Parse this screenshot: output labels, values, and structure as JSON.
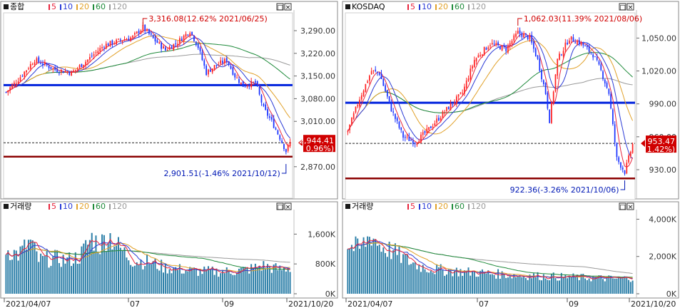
{
  "colors": {
    "up": "#ff2222",
    "down": "#1a33ff",
    "ma5": "#e8243c",
    "ma10": "#2b3bd6",
    "ma20": "#e1a12a",
    "ma60": "#1e8a3a",
    "ma120": "#9a9a9a",
    "support": "#0022dd",
    "floor": "#8b0000",
    "vol": "#2c7fa8"
  },
  "ma_legend": [
    "5",
    "10",
    "20",
    "60",
    "120"
  ],
  "chart_data": [
    {
      "id": "kospi",
      "type": "candlestick",
      "title": "종합",
      "ylim": [
        2830,
        3345
      ],
      "yticks": [
        "3,290.00",
        "3,220.00",
        "3,150.00",
        "3,080.00",
        "3,010.00",
        "2,870.00"
      ],
      "ytick_values": [
        3290,
        3220,
        3150,
        3080,
        3010,
        2870
      ],
      "high_annotation": "3,316.08(12.62% 2021/06/25)",
      "low_annotation": "2,901.51(-1.46% 2021/10/12)",
      "last_price": "2,944.41",
      "last_change": "( 0.96%)",
      "support_level": 3122,
      "floor_level": 2901,
      "last_level": 2944,
      "close_path": [
        [
          0,
          3100
        ],
        [
          6,
          3140
        ],
        [
          14,
          3200
        ],
        [
          24,
          3170
        ],
        [
          32,
          3160
        ],
        [
          40,
          3200
        ],
        [
          48,
          3245
        ],
        [
          56,
          3260
        ],
        [
          62,
          3270
        ],
        [
          67,
          3300
        ],
        [
          72,
          3265
        ],
        [
          78,
          3230
        ],
        [
          84,
          3255
        ],
        [
          90,
          3290
        ],
        [
          94,
          3240
        ],
        [
          98,
          3160
        ],
        [
          102,
          3180
        ],
        [
          108,
          3200
        ],
        [
          112,
          3150
        ],
        [
          116,
          3120
        ],
        [
          122,
          3130
        ],
        [
          126,
          3050
        ],
        [
          130,
          3010
        ],
        [
          134,
          2960
        ],
        [
          137,
          2918
        ],
        [
          139,
          2944
        ]
      ],
      "volume": {
        "title": "거래량",
        "ylim": [
          0,
          2200
        ],
        "yticks": [
          "1,600K",
          "800K",
          "0K"
        ],
        "ytick_values": [
          1600,
          800,
          0
        ],
        "path": [
          [
            0,
            1200
          ],
          [
            6,
            1050
          ],
          [
            12,
            1400
          ],
          [
            16,
            900
          ],
          [
            24,
            950
          ],
          [
            30,
            900
          ],
          [
            36,
            1000
          ],
          [
            42,
            1500
          ],
          [
            46,
            1300
          ],
          [
            50,
            1600
          ],
          [
            56,
            1200
          ],
          [
            62,
            900
          ],
          [
            70,
            850
          ],
          [
            78,
            700
          ],
          [
            86,
            650
          ],
          [
            94,
            600
          ],
          [
            102,
            600
          ],
          [
            110,
            600
          ],
          [
            118,
            650
          ],
          [
            126,
            750
          ],
          [
            134,
            650
          ],
          [
            139,
            700
          ]
        ]
      },
      "xdates": [
        "2021/04/07",
        "07",
        "09",
        "2021/10/20"
      ]
    },
    {
      "id": "kosdaq",
      "type": "candlestick",
      "title": "KOSDAQ",
      "ylim": [
        917,
        1073
      ],
      "yticks": [
        "1,050.00",
        "1,020.00",
        "990.00",
        "960.00",
        "930.00"
      ],
      "ytick_values": [
        1050,
        1020,
        990,
        960,
        930
      ],
      "high_annotation": "1,062.03(11.39% 2021/08/06)",
      "low_annotation": "922.36(-3.26% 2021/10/06)",
      "last_price": "953.47",
      "last_change": "( 1.42%)",
      "support_level": 991,
      "floor_level": 922,
      "last_level": 954,
      "close_path": [
        [
          0,
          965
        ],
        [
          6,
          995
        ],
        [
          12,
          1020
        ],
        [
          16,
          1018
        ],
        [
          22,
          985
        ],
        [
          28,
          960
        ],
        [
          34,
          955
        ],
        [
          40,
          965
        ],
        [
          50,
          985
        ],
        [
          58,
          1000
        ],
        [
          64,
          1030
        ],
        [
          72,
          1045
        ],
        [
          80,
          1040
        ],
        [
          86,
          1055
        ],
        [
          92,
          1050
        ],
        [
          96,
          1030
        ],
        [
          98,
          1015
        ],
        [
          100,
          1000
        ],
        [
          102,
          975
        ],
        [
          106,
          1030
        ],
        [
          112,
          1050
        ],
        [
          118,
          1045
        ],
        [
          124,
          1035
        ],
        [
          128,
          1020
        ],
        [
          132,
          1000
        ],
        [
          136,
          940
        ],
        [
          140,
          928
        ],
        [
          144,
          953
        ]
      ],
      "volume": {
        "title": "거래량",
        "ylim": [
          0,
          4400
        ],
        "yticks": [
          "4,000K",
          "2,000K",
          "0K"
        ],
        "ytick_values": [
          4000,
          2000,
          0
        ],
        "path": [
          [
            0,
            2600
          ],
          [
            6,
            2400
          ],
          [
            12,
            3200
          ],
          [
            16,
            2600
          ],
          [
            24,
            2200
          ],
          [
            30,
            1800
          ],
          [
            36,
            1500
          ],
          [
            44,
            1300
          ],
          [
            56,
            1200
          ],
          [
            70,
            1100
          ],
          [
            84,
            1000
          ],
          [
            96,
            950
          ],
          [
            110,
            900
          ],
          [
            124,
            850
          ],
          [
            136,
            800
          ],
          [
            144,
            850
          ]
        ]
      },
      "xdates": [
        "2021/04/07",
        "07",
        "09",
        "2021/10/20"
      ]
    }
  ]
}
